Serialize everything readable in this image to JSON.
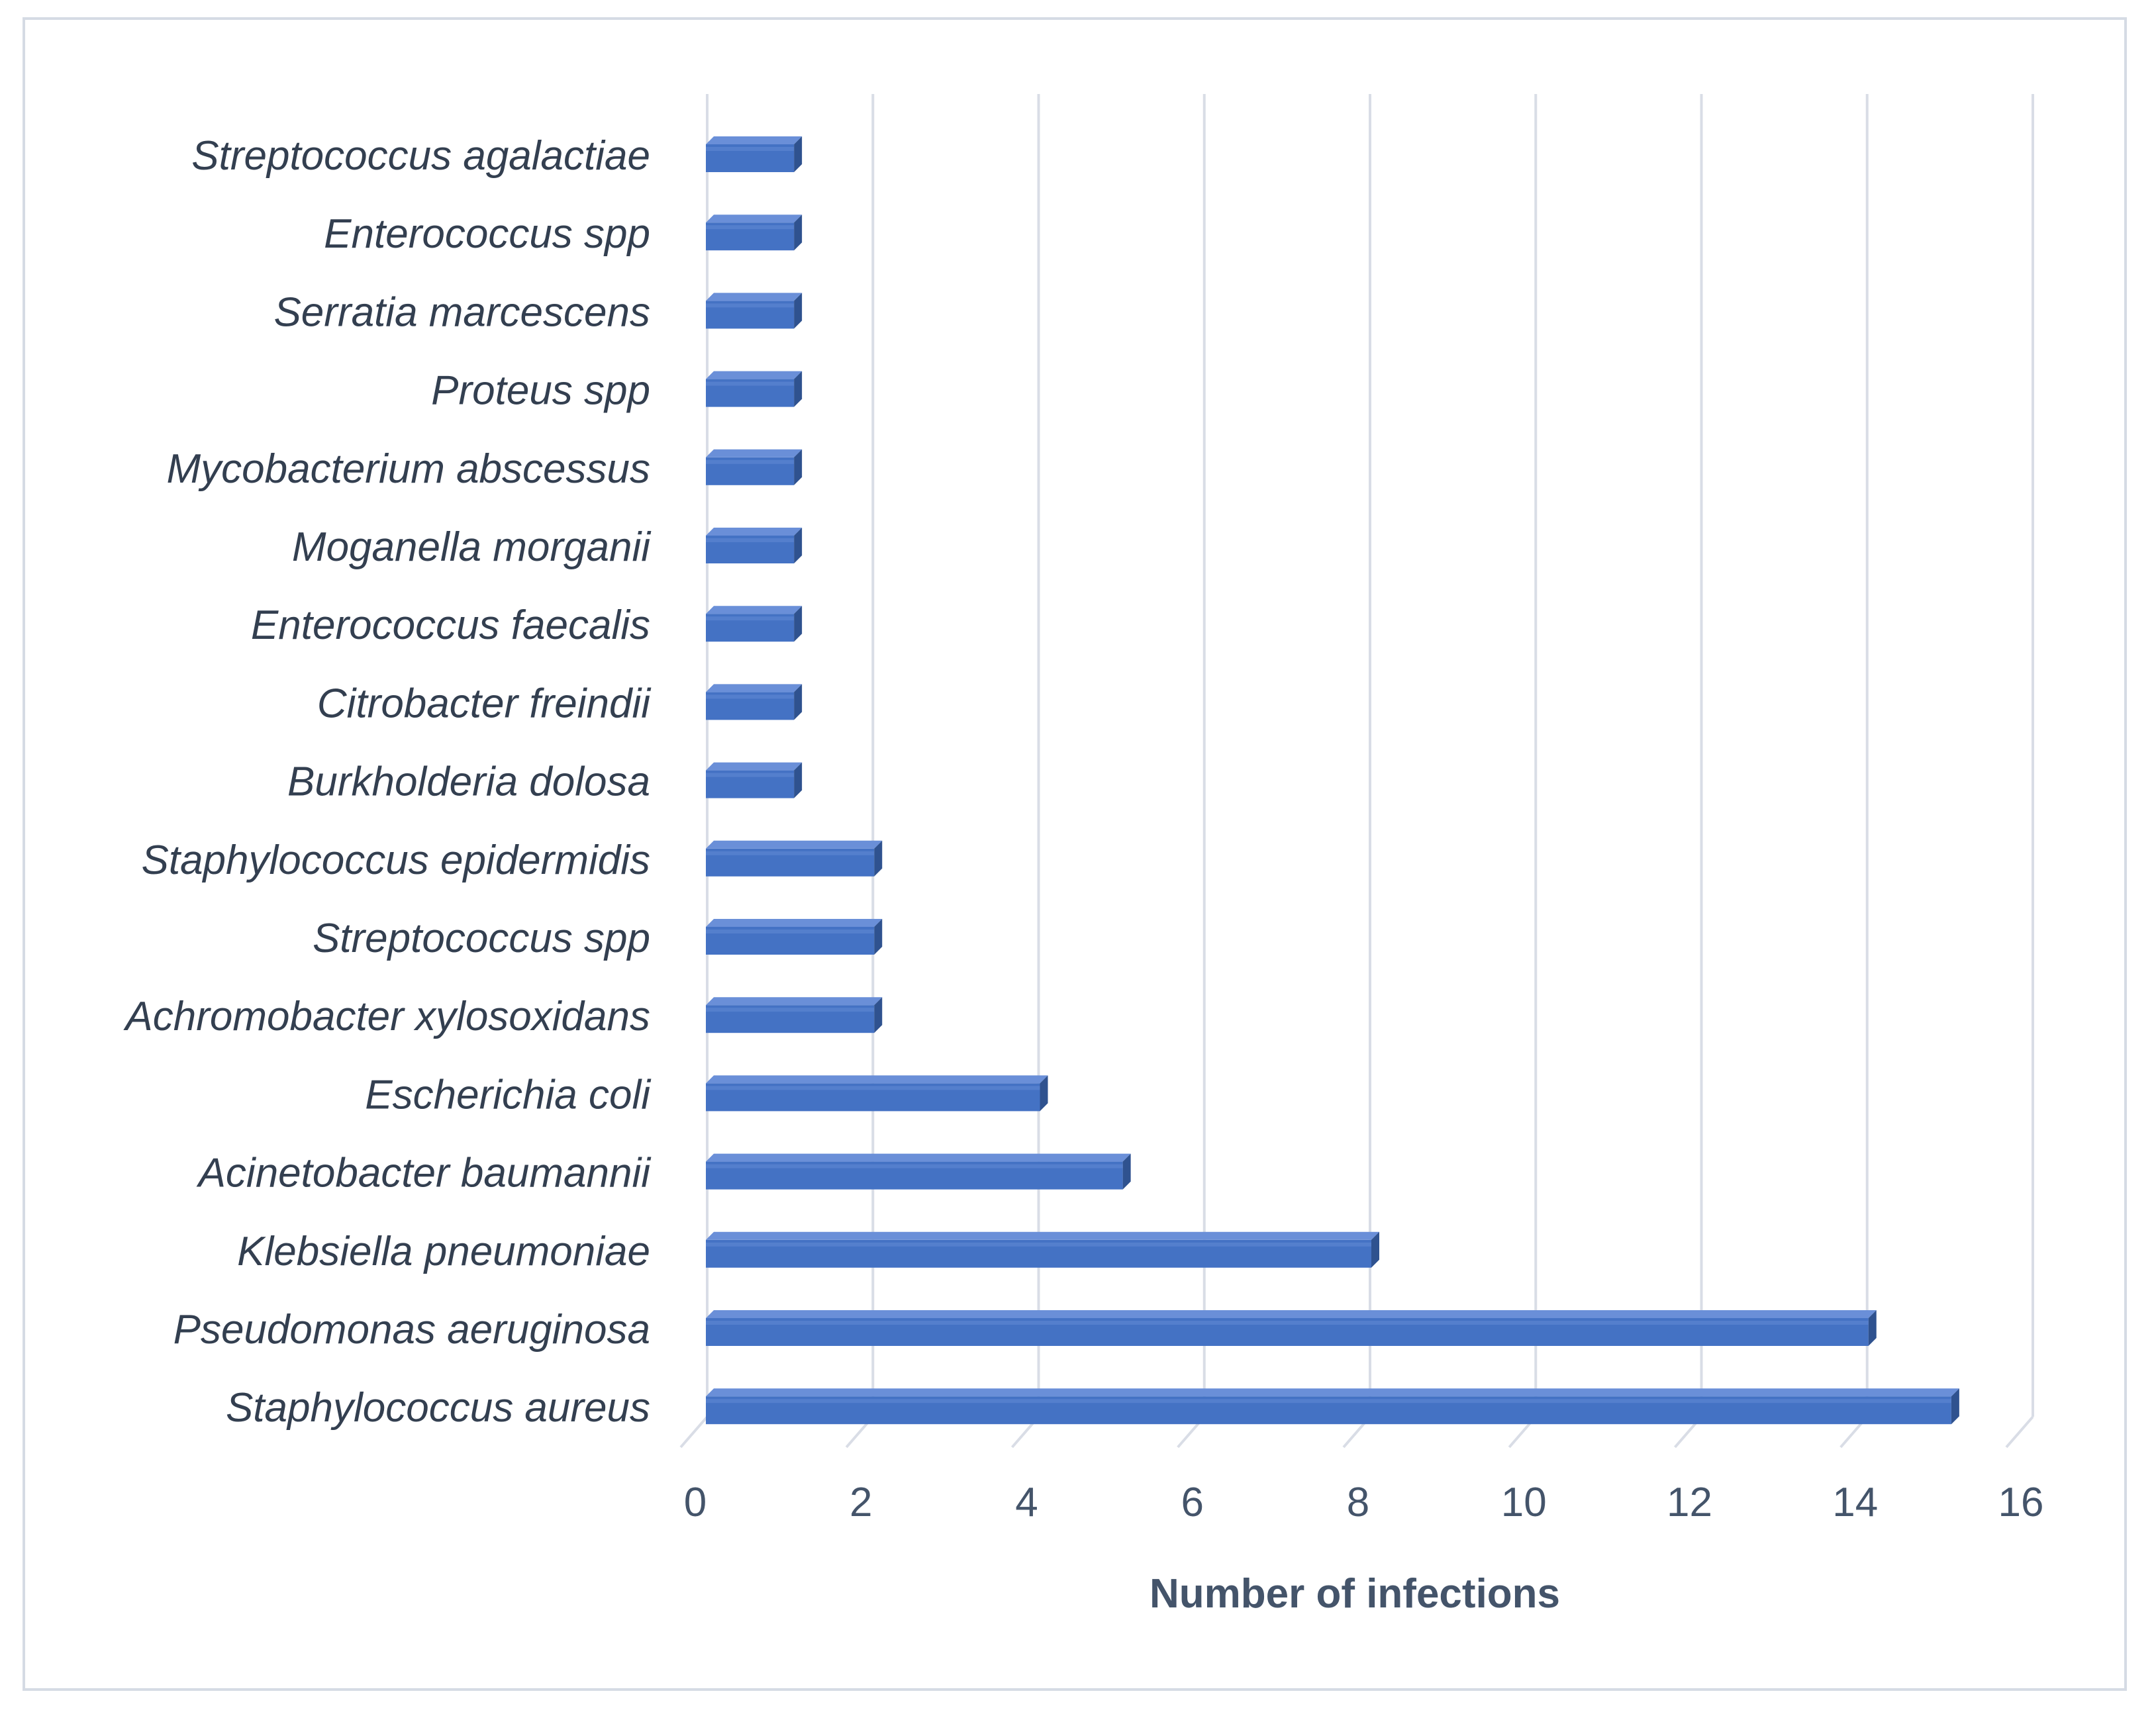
{
  "chart_data": {
    "type": "bar",
    "orientation": "horizontal",
    "style": "3d",
    "title": "",
    "xlabel": "Number of infections",
    "ylabel": "",
    "xlim": [
      0,
      16
    ],
    "xticks": [
      "0",
      "2",
      "4",
      "6",
      "8",
      "10",
      "12",
      "14",
      "16"
    ],
    "grid": true,
    "legend": "none",
    "categories": [
      "Streptococcus agalactiae",
      "Enterococcus spp",
      "Serratia marcescens",
      "Proteus spp",
      "Mycobacterium abscessus",
      "Moganella morganii",
      "Enterococcus faecalis",
      "Citrobacter freindii",
      "Burkholderia dolosa",
      "Staphylococcus epidermidis",
      "Streptococcus spp",
      "Achromobacter xylosoxidans",
      "Escherichia coli",
      "Acinetobacter baumannii",
      "Klebsiella pneumoniae",
      "Pseudomonas aeruginosa",
      "Staphylococcus aureus"
    ],
    "values": [
      1,
      1,
      1,
      1,
      1,
      1,
      1,
      1,
      1,
      2,
      2,
      2,
      4,
      5,
      8,
      14,
      15
    ],
    "colors": {
      "bar_front": "#4472c4",
      "bar_top": "#6a8fd8",
      "bar_side": "#2f528f",
      "grid": "#d9dde6",
      "text": "#44546a"
    }
  }
}
